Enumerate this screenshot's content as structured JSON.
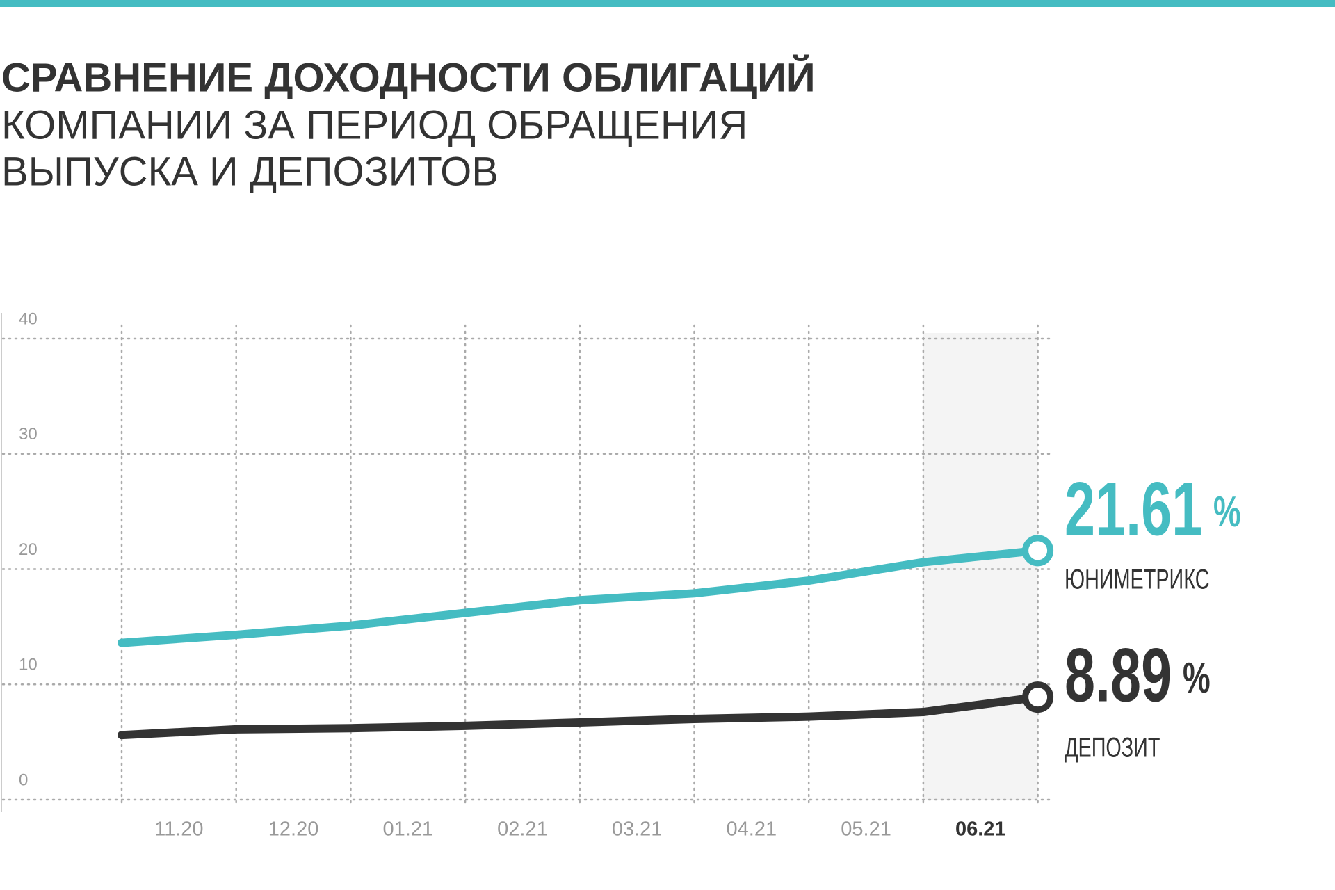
{
  "chart_data": {
    "type": "line",
    "title": "СРАВНЕНИЕ ДОХОДНОСТИ ОБЛИГАЦИЙ",
    "subtitle": [
      "КОМПАНИИ ЗА ПЕРИОД ОБРАЩЕНИЯ",
      "ВЫПУСКА И ДЕПОЗИТОВ"
    ],
    "categories": [
      null,
      "11.20",
      "12.20",
      "01.21",
      "02.21",
      "03.21",
      "04.21",
      "05.21",
      "06.21"
    ],
    "highlight": 8,
    "unit": "%",
    "series": [
      {
        "name": "ЮНИМЕТРИКС",
        "color": "#45bcc2",
        "values": [
          13.6,
          14.3,
          15.1,
          16.2,
          17.3,
          17.9,
          19.0,
          20.6,
          21.61
        ],
        "value_labels": [
          null,
          null,
          null,
          null,
          null,
          null,
          null,
          null,
          "21.61"
        ]
      },
      {
        "name": "ДЕПОЗИТ",
        "color": "#333333",
        "values": [
          5.6,
          6.1,
          6.2,
          6.4,
          6.7,
          7.0,
          7.2,
          7.6,
          8.89
        ],
        "value_labels": [
          null,
          null,
          null,
          null,
          null,
          null,
          null,
          null,
          "8.89"
        ]
      }
    ],
    "ylim": [
      0,
      40
    ],
    "yticks": [
      0,
      10,
      20,
      30,
      40
    ],
    "grid": true
  }
}
